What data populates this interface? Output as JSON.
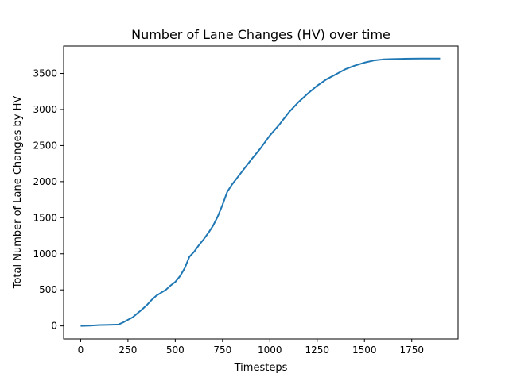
{
  "chart_data": {
    "type": "line",
    "title": "Number of Lane Changes (HV) over time",
    "xlabel": "Timesteps",
    "ylabel": "Total Number of Lane Changes by HV",
    "xlim": [
      -90,
      1995
    ],
    "ylim": [
      -180,
      3880
    ],
    "xticks": [
      0,
      250,
      500,
      750,
      1000,
      1250,
      1500,
      1750
    ],
    "yticks": [
      0,
      500,
      1000,
      1500,
      2000,
      2500,
      3000,
      3500
    ],
    "grid": false,
    "series": [
      {
        "color": "#1f77b4",
        "x": [
          0,
          50,
          100,
          150,
          200,
          225,
          250,
          275,
          300,
          325,
          350,
          375,
          400,
          425,
          450,
          475,
          500,
          525,
          550,
          575,
          600,
          625,
          650,
          675,
          700,
          725,
          750,
          775,
          800,
          850,
          900,
          950,
          1000,
          1050,
          1100,
          1150,
          1200,
          1250,
          1300,
          1350,
          1400,
          1450,
          1500,
          1550,
          1600,
          1650,
          1700,
          1750,
          1800,
          1850,
          1900
        ],
        "y": [
          0,
          5,
          12,
          15,
          20,
          50,
          85,
          120,
          175,
          230,
          290,
          360,
          420,
          460,
          500,
          560,
          610,
          690,
          800,
          960,
          1030,
          1120,
          1200,
          1290,
          1390,
          1520,
          1680,
          1860,
          1960,
          2130,
          2300,
          2460,
          2640,
          2790,
          2960,
          3100,
          3220,
          3330,
          3420,
          3490,
          3560,
          3610,
          3650,
          3680,
          3695,
          3700,
          3703,
          3705,
          3706,
          3707,
          3707
        ]
      }
    ]
  }
}
